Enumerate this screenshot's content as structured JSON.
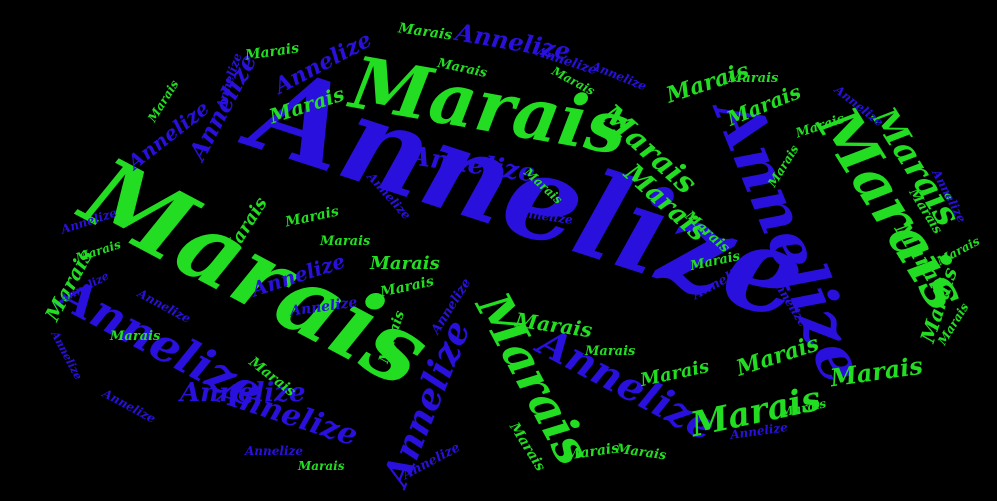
{
  "words": {
    "first": "Annelize",
    "last": "Marais"
  },
  "colors": {
    "background": "#000000",
    "green": "#22dd22",
    "blue": "#2a10dd"
  }
}
